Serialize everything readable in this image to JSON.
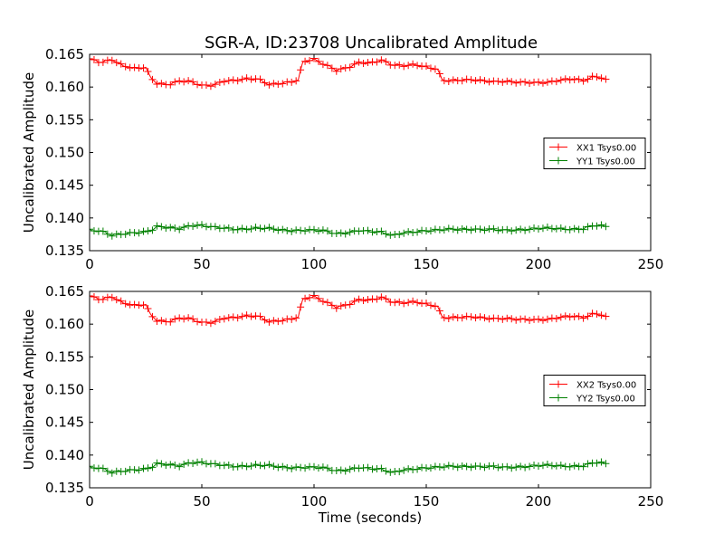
{
  "figure_title": "SGR-A, ID:23708 Uncalibrated Amplitude",
  "chart_data": [
    {
      "type": "line",
      "title": "SGR-A, ID:23708 Uncalibrated Amplitude",
      "xlabel": "",
      "ylabel": "Uncalibrated Amplitude",
      "xlim": [
        0,
        250
      ],
      "ylim": [
        0.135,
        0.165
      ],
      "xticks": [
        0,
        50,
        100,
        150,
        200,
        250
      ],
      "yticks": [
        0.135,
        0.14,
        0.145,
        0.15,
        0.155,
        0.16,
        0.165
      ],
      "xtick_labels": [
        "0",
        "50",
        "100",
        "150",
        "200",
        "250"
      ],
      "ytick_labels": [
        "0.135",
        "0.140",
        "0.145",
        "0.150",
        "0.155",
        "0.160",
        "0.165"
      ],
      "grid": false,
      "legend": "center-right",
      "series": [
        {
          "name": "XX1 Tsys0.00",
          "color": "#ff0000",
          "marker": "plus",
          "x": [
            0,
            5,
            10,
            15,
            20,
            25,
            27,
            30,
            35,
            40,
            45,
            50,
            55,
            60,
            65,
            70,
            75,
            80,
            85,
            90,
            93,
            95,
            100,
            105,
            110,
            115,
            120,
            125,
            130,
            135,
            140,
            145,
            150,
            155,
            157,
            160,
            165,
            170,
            175,
            180,
            185,
            190,
            195,
            200,
            205,
            210,
            215,
            220,
            225,
            230
          ],
          "y": [
            0.1643,
            0.1638,
            0.1642,
            0.1632,
            0.1628,
            0.163,
            0.1615,
            0.1606,
            0.1604,
            0.1609,
            0.1608,
            0.1602,
            0.1603,
            0.161,
            0.161,
            0.1612,
            0.1612,
            0.1604,
            0.1606,
            0.1608,
            0.1611,
            0.1638,
            0.1642,
            0.1634,
            0.1626,
            0.163,
            0.1637,
            0.1636,
            0.1641,
            0.1634,
            0.1633,
            0.1634,
            0.163,
            0.1627,
            0.1611,
            0.161,
            0.1611,
            0.1611,
            0.1609,
            0.1608,
            0.1609,
            0.1608,
            0.1607,
            0.1606,
            0.1607,
            0.1611,
            0.1613,
            0.161,
            0.1616,
            0.1612
          ]
        },
        {
          "name": "YY1 Tsys0.00",
          "color": "#008000",
          "marker": "plus",
          "x": [
            0,
            5,
            10,
            15,
            20,
            25,
            28,
            30,
            35,
            40,
            45,
            50,
            55,
            60,
            65,
            70,
            75,
            80,
            85,
            90,
            95,
            100,
            105,
            110,
            115,
            120,
            125,
            130,
            135,
            140,
            145,
            150,
            155,
            160,
            165,
            170,
            175,
            180,
            185,
            190,
            195,
            200,
            205,
            210,
            215,
            220,
            225,
            230
          ],
          "y": [
            0.1381,
            0.138,
            0.1374,
            0.1376,
            0.1377,
            0.1378,
            0.1382,
            0.1387,
            0.1386,
            0.1384,
            0.1388,
            0.1388,
            0.1386,
            0.1385,
            0.1383,
            0.1383,
            0.1384,
            0.1384,
            0.1382,
            0.1381,
            0.1381,
            0.1381,
            0.138,
            0.1376,
            0.1378,
            0.1381,
            0.1379,
            0.1378,
            0.1373,
            0.1378,
            0.1379,
            0.138,
            0.1381,
            0.1383,
            0.1383,
            0.1383,
            0.1382,
            0.1382,
            0.1381,
            0.1382,
            0.1383,
            0.1384,
            0.1384,
            0.1383,
            0.1383,
            0.1384,
            0.1389,
            0.1387
          ]
        }
      ]
    },
    {
      "type": "line",
      "title": "",
      "xlabel": "Time (seconds)",
      "ylabel": "Uncalibrated Amplitude",
      "xlim": [
        0,
        250
      ],
      "ylim": [
        0.135,
        0.165
      ],
      "xticks": [
        0,
        50,
        100,
        150,
        200,
        250
      ],
      "yticks": [
        0.135,
        0.14,
        0.145,
        0.15,
        0.155,
        0.16,
        0.165
      ],
      "xtick_labels": [
        "0",
        "50",
        "100",
        "150",
        "200",
        "250"
      ],
      "ytick_labels": [
        "0.135",
        "0.140",
        "0.145",
        "0.150",
        "0.155",
        "0.160",
        "0.165"
      ],
      "grid": false,
      "legend": "center-right",
      "series": [
        {
          "name": "XX2 Tsys0.00",
          "color": "#ff0000",
          "marker": "plus",
          "x": [
            0,
            5,
            10,
            15,
            20,
            25,
            27,
            30,
            35,
            40,
            45,
            50,
            55,
            60,
            65,
            70,
            75,
            80,
            85,
            90,
            93,
            95,
            100,
            105,
            110,
            115,
            120,
            125,
            130,
            135,
            140,
            145,
            150,
            155,
            157,
            160,
            165,
            170,
            175,
            180,
            185,
            190,
            195,
            200,
            205,
            210,
            215,
            220,
            225,
            230
          ],
          "y": [
            0.1643,
            0.1638,
            0.1642,
            0.1632,
            0.1628,
            0.163,
            0.1615,
            0.1606,
            0.1604,
            0.1609,
            0.1608,
            0.1602,
            0.1603,
            0.161,
            0.161,
            0.1612,
            0.1612,
            0.1604,
            0.1606,
            0.1608,
            0.1611,
            0.1638,
            0.1642,
            0.1634,
            0.1626,
            0.163,
            0.1637,
            0.1636,
            0.1641,
            0.1634,
            0.1633,
            0.1634,
            0.163,
            0.1627,
            0.1611,
            0.161,
            0.1611,
            0.1611,
            0.1609,
            0.1608,
            0.1609,
            0.1608,
            0.1607,
            0.1606,
            0.1607,
            0.1611,
            0.1613,
            0.161,
            0.1616,
            0.1612
          ]
        },
        {
          "name": "YY2 Tsys0.00",
          "color": "#008000",
          "marker": "plus",
          "x": [
            0,
            5,
            10,
            15,
            20,
            25,
            28,
            30,
            35,
            40,
            45,
            50,
            55,
            60,
            65,
            70,
            75,
            80,
            85,
            90,
            95,
            100,
            105,
            110,
            115,
            120,
            125,
            130,
            135,
            140,
            145,
            150,
            155,
            160,
            165,
            170,
            175,
            180,
            185,
            190,
            195,
            200,
            205,
            210,
            215,
            220,
            225,
            230
          ],
          "y": [
            0.1381,
            0.138,
            0.1374,
            0.1376,
            0.1377,
            0.1378,
            0.1382,
            0.1387,
            0.1386,
            0.1384,
            0.1388,
            0.1388,
            0.1386,
            0.1385,
            0.1383,
            0.1383,
            0.1384,
            0.1384,
            0.1382,
            0.1381,
            0.1381,
            0.1381,
            0.138,
            0.1376,
            0.1378,
            0.1381,
            0.1379,
            0.1378,
            0.1373,
            0.1378,
            0.1379,
            0.138,
            0.1381,
            0.1383,
            0.1383,
            0.1383,
            0.1382,
            0.1382,
            0.1381,
            0.1382,
            0.1383,
            0.1384,
            0.1384,
            0.1383,
            0.1383,
            0.1384,
            0.1389,
            0.1387
          ]
        }
      ]
    }
  ]
}
